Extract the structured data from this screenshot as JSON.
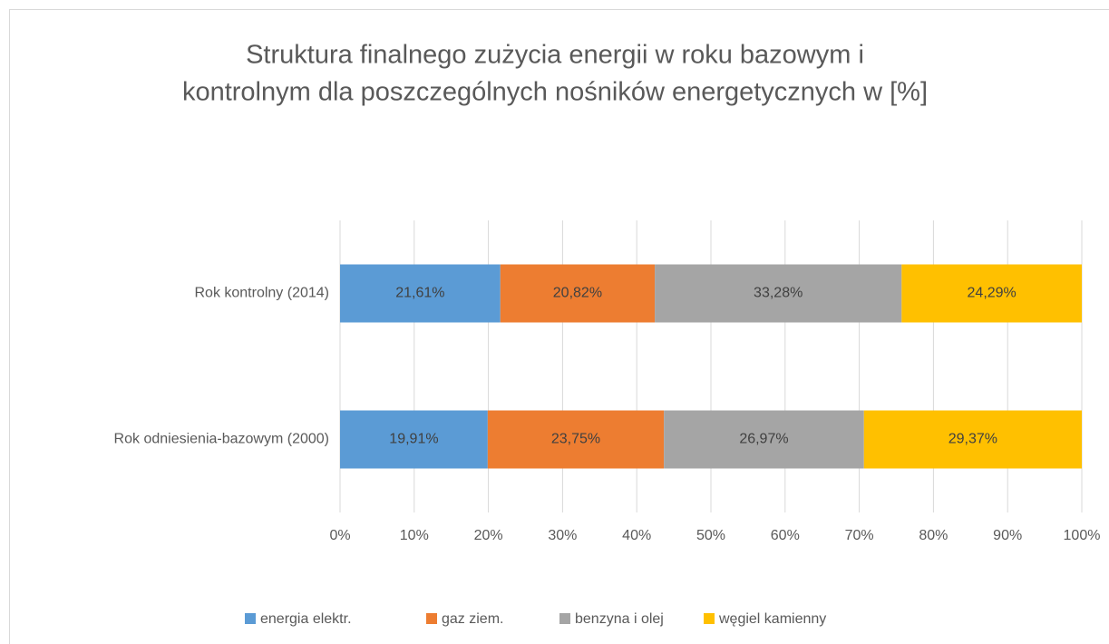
{
  "chart_data": {
    "type": "stacked-bar-horizontal",
    "title_lines": [
      "Struktura finalnego zużycia energii w roku bazowym i",
      "kontrolnym dla poszczególnych nośników energetycznych w [%]"
    ],
    "categories": [
      "Rok kontrolny (2014)",
      "Rok odniesienia-bazowym (2000)"
    ],
    "series": [
      {
        "name": "energia elektr.",
        "color": "#5b9bd5",
        "values": [
          21.61,
          19.91
        ],
        "value_labels": [
          "21,61%",
          "19,91%"
        ]
      },
      {
        "name": "gaz ziem.",
        "color": "#ed7d31",
        "values": [
          20.82,
          23.75
        ],
        "value_labels": [
          "20,82%",
          "23,75%"
        ]
      },
      {
        "name": "benzyna i olej",
        "color": "#a5a5a5",
        "values": [
          33.28,
          26.97
        ],
        "value_labels": [
          "33,28%",
          "26,97%"
        ]
      },
      {
        "name": "węgiel kamienny",
        "color": "#ffc000",
        "values": [
          24.29,
          29.37
        ],
        "value_labels": [
          "24,29%",
          "29,37%"
        ]
      }
    ],
    "xlim": [
      0,
      100
    ],
    "xticks": [
      {
        "value": 0,
        "label": "0%"
      },
      {
        "value": 10,
        "label": "10%"
      },
      {
        "value": 20,
        "label": "20%"
      },
      {
        "value": 30,
        "label": "30%"
      },
      {
        "value": 40,
        "label": "40%"
      },
      {
        "value": 50,
        "label": "50%"
      },
      {
        "value": 60,
        "label": "60%"
      },
      {
        "value": 70,
        "label": "70%"
      },
      {
        "value": 80,
        "label": "80%"
      },
      {
        "value": 90,
        "label": "90%"
      },
      {
        "value": 100,
        "label": "100%"
      }
    ],
    "grid": true,
    "legend": "bottom"
  }
}
